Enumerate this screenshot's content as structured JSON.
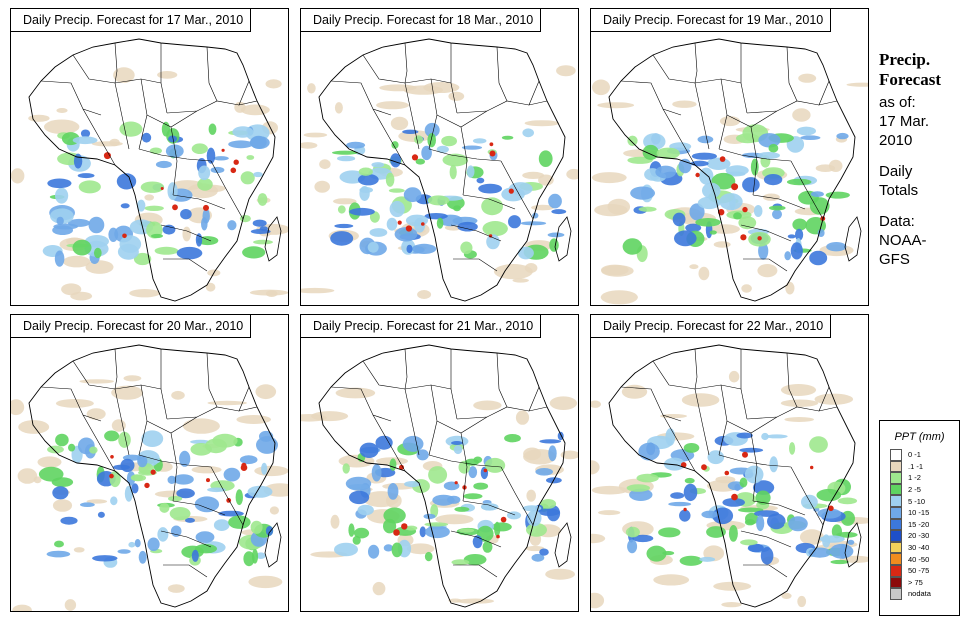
{
  "panels": [
    {
      "title": "Daily Precip. Forecast for  17 Mar., 2010"
    },
    {
      "title": "Daily Precip. Forecast for  18 Mar., 2010"
    },
    {
      "title": "Daily Precip. Forecast for  19 Mar., 2010"
    },
    {
      "title": "Daily Precip. Forecast for  20 Mar., 2010"
    },
    {
      "title": "Daily Precip. Forecast for  21 Mar., 2010"
    },
    {
      "title": "Daily Precip. Forecast for  22 Mar., 2010"
    }
  ],
  "sidebar": {
    "heading_line1": "Precip.",
    "heading_line2": "Forecast",
    "asof_label": "as of:",
    "asof_date_line1": "17 Mar.",
    "asof_date_line2": "2010",
    "totals_line1": "Daily",
    "totals_line2": "Totals",
    "data_line1": "Data:",
    "data_line2": "NOAA-",
    "data_line3": "GFS"
  },
  "legend": {
    "title": "PPT (mm)",
    "items": [
      {
        "label": "0 -1",
        "color": "#ffffff"
      },
      {
        "label": ".1 -1",
        "color": "#e8d7bd"
      },
      {
        "label": "1 -2",
        "color": "#9ee88e"
      },
      {
        "label": "2 -5",
        "color": "#5fd460"
      },
      {
        "label": "5 -10",
        "color": "#9fd0f0"
      },
      {
        "label": "10 -15",
        "color": "#6fa8e8"
      },
      {
        "label": "15 -20",
        "color": "#3c78dc"
      },
      {
        "label": "20 -30",
        "color": "#1e4fc8"
      },
      {
        "label": "30 -40",
        "color": "#f5d25a"
      },
      {
        "label": "40 -50",
        "color": "#f08c1e"
      },
      {
        "label": "50 -75",
        "color": "#d82814"
      },
      {
        "label": "> 75",
        "color": "#8c0a0a"
      },
      {
        "label": "nodata",
        "color": "#c8c8c8"
      }
    ]
  }
}
